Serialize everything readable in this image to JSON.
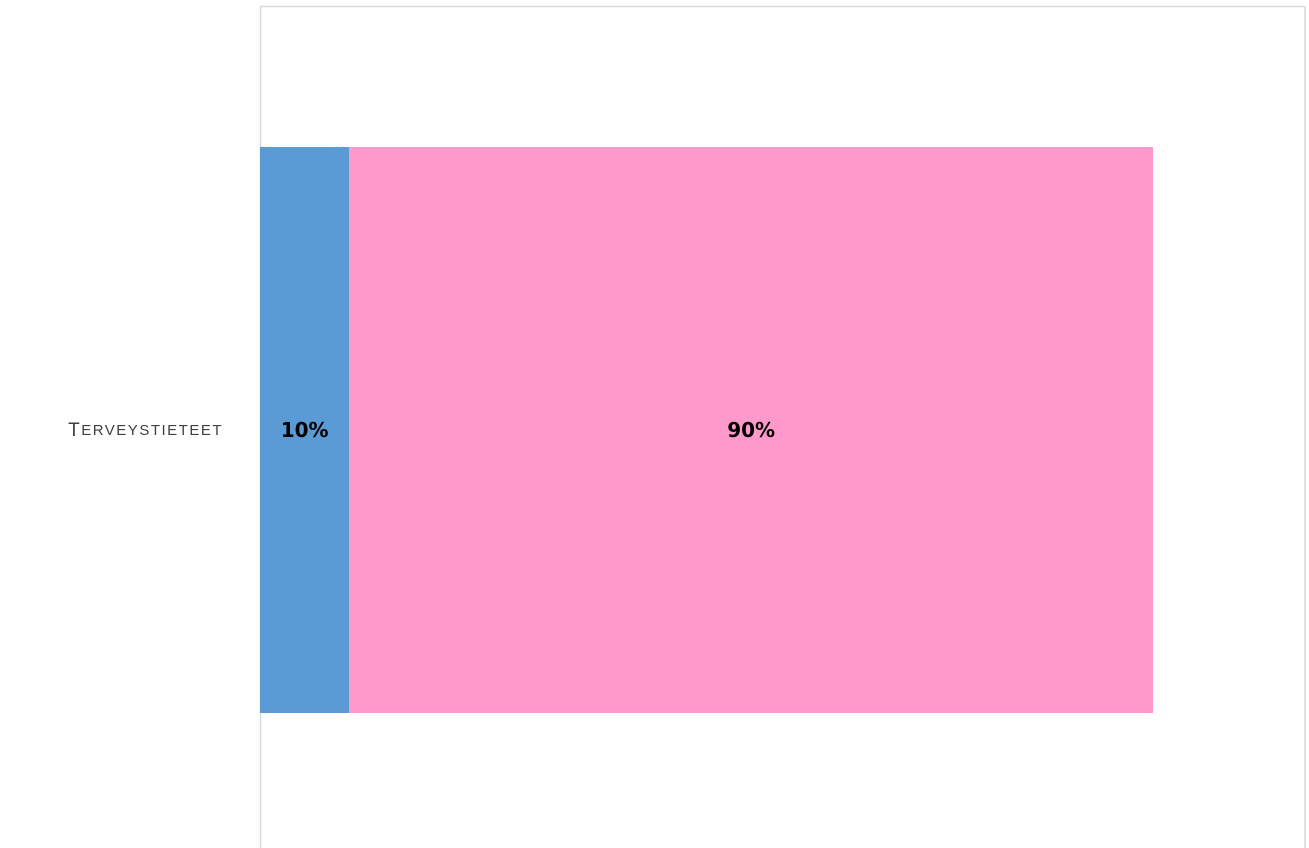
{
  "chart_data": {
    "type": "bar",
    "orientation": "horizontal",
    "stacked": true,
    "normalized": true,
    "categories": [
      "Terveystieteet"
    ],
    "series": [
      {
        "values": [
          10
        ],
        "color": "#5b9bd5",
        "label": "10%"
      },
      {
        "values": [
          90
        ],
        "color": "#ff99cc",
        "label": "90%"
      }
    ],
    "xlim": [
      0,
      100
    ],
    "grid": false,
    "legend": "none"
  }
}
